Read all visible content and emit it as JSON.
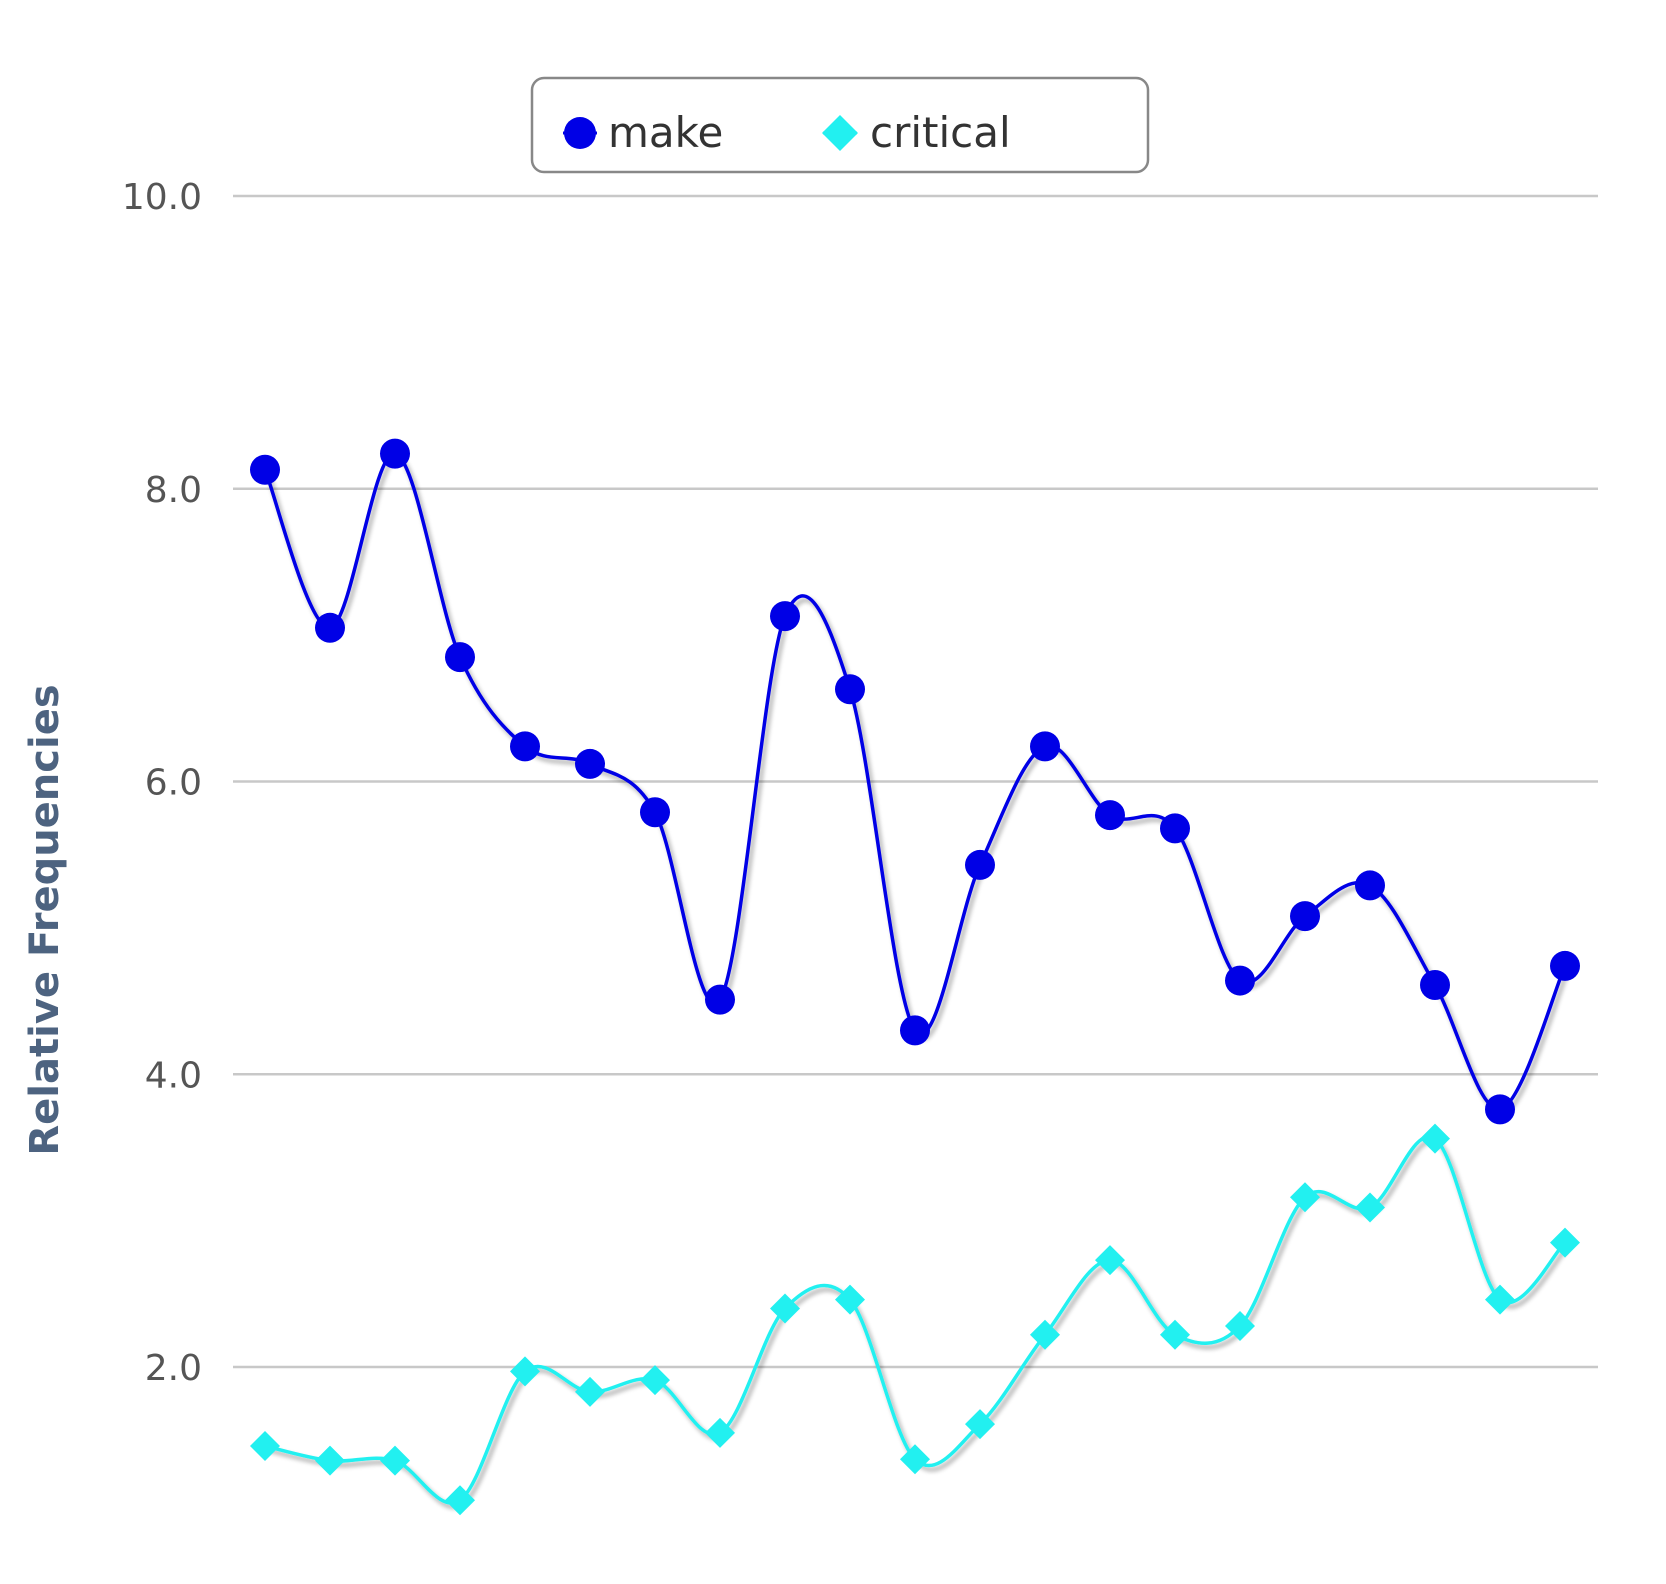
{
  "chart_data": {
    "type": "line",
    "title": "",
    "xlabel": "",
    "ylabel": "Relative Frequencies",
    "ylim": [
      1.0,
      10.0
    ],
    "yticks": [
      "2.0",
      "4.0",
      "6.0",
      "8.0",
      "10.0"
    ],
    "grid": true,
    "legend_position": "top-center",
    "smooth": true,
    "series": [
      {
        "name": "make",
        "color": "#0000e6",
        "marker": "circle",
        "values": [
          8.13,
          7.05,
          8.24,
          6.85,
          6.24,
          6.12,
          5.79,
          4.51,
          7.13,
          6.63,
          4.3,
          5.43,
          6.24,
          5.77,
          5.68,
          4.64,
          5.08,
          5.29,
          4.61,
          3.76,
          4.74
        ]
      },
      {
        "name": "critical",
        "color": "#22f0f0",
        "marker": "diamond",
        "values": [
          1.46,
          1.36,
          1.36,
          1.09,
          1.97,
          1.83,
          1.91,
          1.55,
          2.4,
          2.46,
          1.37,
          1.61,
          2.22,
          2.73,
          2.22,
          2.28,
          3.16,
          3.09,
          3.56,
          2.46,
          2.85
        ]
      }
    ]
  }
}
